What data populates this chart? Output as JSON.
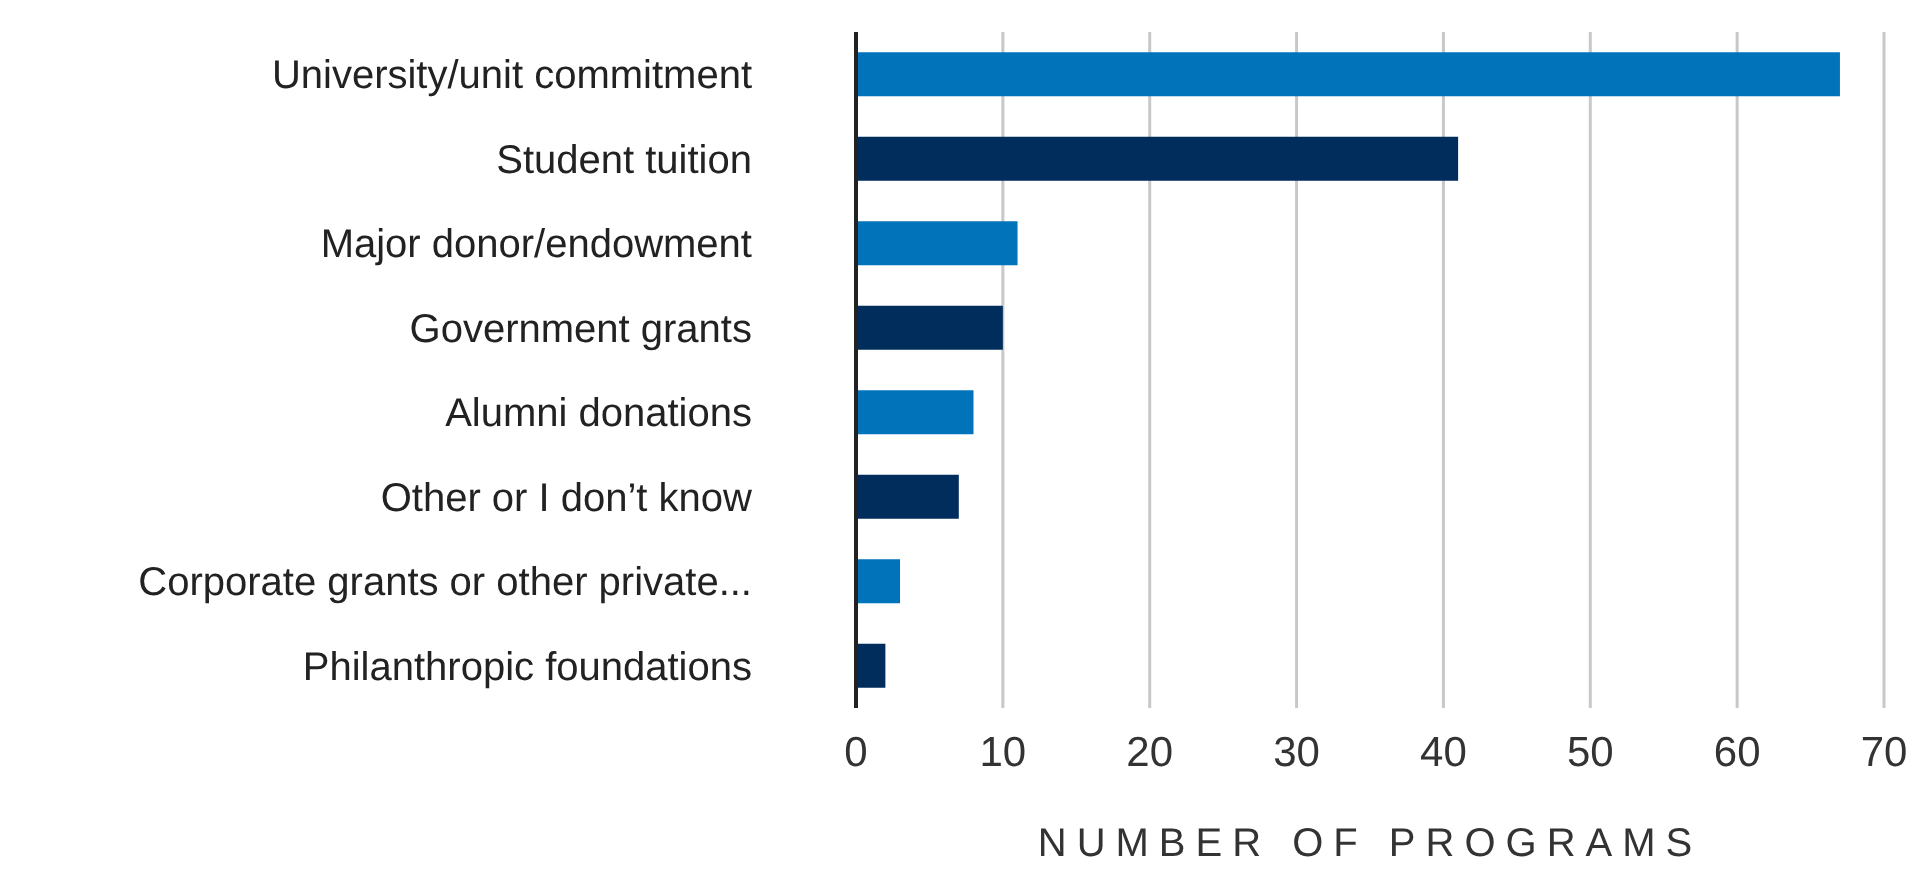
{
  "chart_data": {
    "type": "bar",
    "orientation": "horizontal",
    "xlabel": "NUMBER OF PROGRAMS",
    "categories": [
      "University/unit commitment",
      "Student tuition",
      "Major donor/endowment",
      "Government grants",
      "Alumni donations",
      "Other or I don’t know",
      "Corporate grants or other private...",
      "Philanthropic foundations"
    ],
    "values": [
      67,
      41,
      11,
      10,
      8,
      7,
      3,
      2
    ],
    "colors": [
      "#0073bb",
      "#002d5c",
      "#0073bb",
      "#002d5c",
      "#0073bb",
      "#002d5c",
      "#0073bb",
      "#002d5c"
    ],
    "xlim": [
      0,
      70
    ],
    "xticks": [
      0,
      10,
      20,
      30,
      40,
      50,
      60,
      70
    ],
    "grid": "x"
  }
}
